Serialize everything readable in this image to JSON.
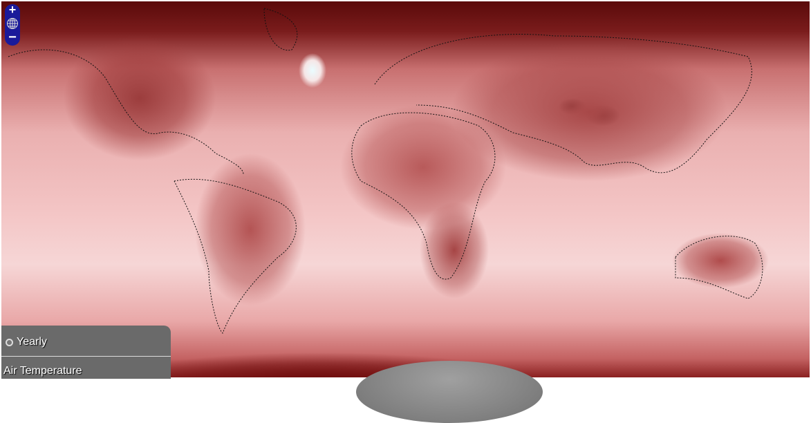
{
  "map": {
    "colors": {
      "cold": "#eafcff",
      "mild": "#f6d6d6",
      "warm": "#c46262",
      "hot": "#5a0a0a"
    }
  },
  "zoom_control": {
    "zoom_in": "+",
    "zoom_out": "−",
    "globe_icon": "globe-icon"
  },
  "panel": {
    "period": "Yearly",
    "variable": "Air Temperature"
  }
}
